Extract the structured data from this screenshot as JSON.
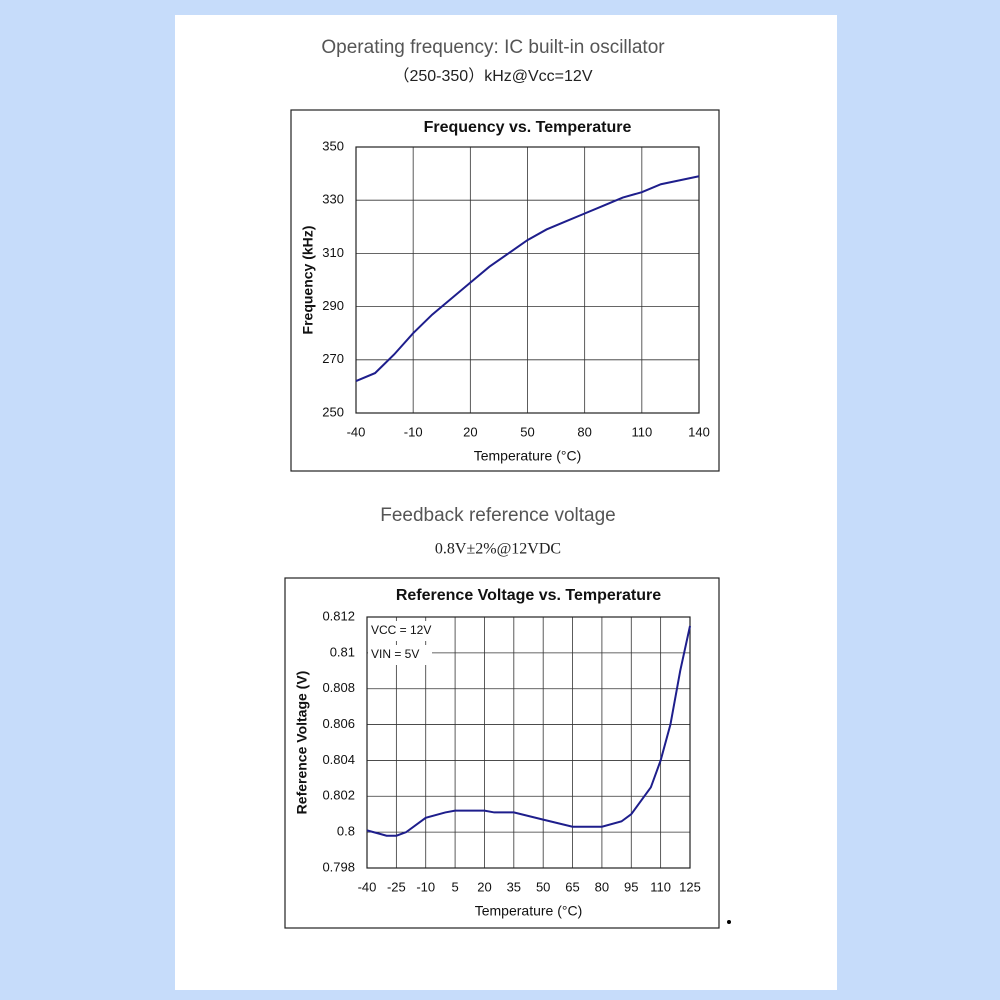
{
  "chart_data": [
    {
      "type": "line",
      "caption": "Operating frequency: IC built-in oscillator",
      "caption_sub": "（250-350）kHz@Vcc=12V",
      "title": "Frequency vs. Temperature",
      "xlabel": "Temperature (°C)",
      "ylabel": "Frequency (kHz)",
      "x": [
        -40,
        -30,
        -20,
        -10,
        0,
        10,
        20,
        30,
        40,
        50,
        60,
        70,
        80,
        90,
        100,
        110,
        120,
        130,
        140
      ],
      "values": [
        262,
        265,
        272,
        280,
        287,
        293,
        299,
        305,
        310,
        315,
        319,
        322,
        325,
        328,
        331,
        333,
        336,
        337.5,
        339
      ],
      "color": "#1e1e8c",
      "xlim": [
        -40,
        140
      ],
      "xticks": [
        -40,
        -10,
        20,
        50,
        80,
        110,
        140
      ],
      "ylim": [
        250,
        350
      ],
      "yticks": [
        250,
        270,
        290,
        310,
        330,
        350
      ],
      "grid": true
    },
    {
      "type": "line",
      "caption": "Feedback reference voltage",
      "caption_sub": "0.8V±2%@12VDC",
      "title": "Reference Voltage vs. Temperature",
      "xlabel": "Temperature (°C)",
      "ylabel": "Reference Voltage (V)",
      "annotations": [
        "VCC = 12V",
        "VIN = 5V"
      ],
      "x": [
        -40,
        -30,
        -25,
        -20,
        -10,
        0,
        5,
        20,
        25,
        35,
        50,
        65,
        80,
        90,
        95,
        105,
        110,
        115,
        120,
        125
      ],
      "values": [
        0.8001,
        0.7998,
        0.7998,
        0.8,
        0.8008,
        0.8011,
        0.8012,
        0.8012,
        0.8011,
        0.8011,
        0.8007,
        0.8003,
        0.8003,
        0.8006,
        0.801,
        0.8025,
        0.804,
        0.806,
        0.809,
        0.8115
      ],
      "color": "#1e1e8c",
      "xlim": [
        -40,
        125
      ],
      "xticks": [
        -40,
        -25,
        -10,
        5,
        20,
        35,
        50,
        65,
        80,
        95,
        110,
        125
      ],
      "ylim": [
        0.798,
        0.812
      ],
      "yticks": [
        0.798,
        0.8,
        0.802,
        0.804,
        0.806,
        0.808,
        0.81,
        0.812
      ],
      "grid": true
    }
  ]
}
